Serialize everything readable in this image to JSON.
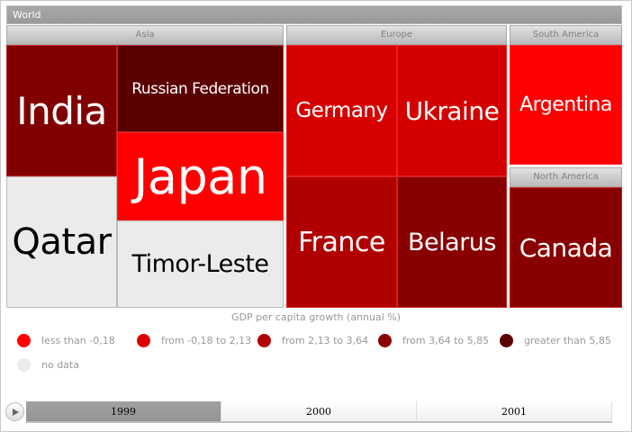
{
  "root": {
    "label": "World"
  },
  "groups": [
    {
      "id": "asia",
      "label": "Asia"
    },
    {
      "id": "europe",
      "label": "Europe"
    },
    {
      "id": "south-america",
      "label": "South America"
    },
    {
      "id": "north-america",
      "label": "North America"
    }
  ],
  "tiles": [
    {
      "id": "india",
      "name": "India",
      "color": "#800000",
      "text_color": "#ffffff"
    },
    {
      "id": "qatar",
      "name": "Qatar",
      "color": "#ebebeb",
      "text_color": "#000000"
    },
    {
      "id": "russia",
      "name": "Russian Federation",
      "color": "#5a0000",
      "text_color": "#ffffff"
    },
    {
      "id": "japan",
      "name": "Japan",
      "color": "#ff0000",
      "text_color": "#ffffff"
    },
    {
      "id": "timor",
      "name": "Timor-Leste",
      "color": "#ebebeb",
      "text_color": "#000000"
    },
    {
      "id": "germany",
      "name": "Germany",
      "color": "#d60000",
      "text_color": "#ffffff"
    },
    {
      "id": "ukraine",
      "name": "Ukraine",
      "color": "#d40000",
      "text_color": "#ffffff"
    },
    {
      "id": "france",
      "name": "France",
      "color": "#b00000",
      "text_color": "#ffffff"
    },
    {
      "id": "belarus",
      "name": "Belarus",
      "color": "#880000",
      "text_color": "#ffffff"
    },
    {
      "id": "argentina",
      "name": "Argentina",
      "color": "#ff0000",
      "text_color": "#ffffff"
    },
    {
      "id": "canada",
      "name": "Canada",
      "color": "#880000",
      "text_color": "#ffffff"
    }
  ],
  "legend": {
    "title": "GDP per capita growth (annual %)",
    "items": [
      {
        "label": "less than -0,18",
        "color": "#ff0000"
      },
      {
        "label": "from -0,18 to 2,13",
        "color": "#dd0000"
      },
      {
        "label": "from 2,13 to 3,64",
        "color": "#b30000"
      },
      {
        "label": "from 3,64 to 5,85",
        "color": "#8b0000"
      },
      {
        "label": "greater than 5,85",
        "color": "#5c0000"
      },
      {
        "label": "no data",
        "color": "#ebebeb"
      }
    ]
  },
  "timeline": {
    "years": [
      "1999",
      "2000",
      "2001"
    ],
    "selected": "1999"
  }
}
